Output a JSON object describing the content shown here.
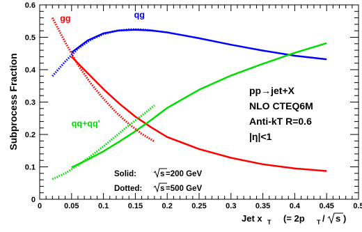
{
  "chart_data": {
    "type": "line",
    "xlabel": "Jet x",
    "xlabel_sub": "T",
    "xlabel_formula": "(= 2p",
    "xlabel_formula_sub": "T",
    "xlabel_formula_end": "/",
    "xlabel_sqrt": "s",
    "xlabel_close": ")",
    "ylabel": "Subprocess Fraction",
    "xlim": [
      0,
      0.5
    ],
    "ylim": [
      0,
      0.6
    ],
    "x_ticks": [
      0,
      0.05,
      0.1,
      0.15,
      0.2,
      0.25,
      0.3,
      0.35,
      0.4,
      0.45,
      0.5
    ],
    "x_tick_labels": [
      "0",
      "0.05",
      "0.1",
      "0.15",
      "0.2",
      "0.25",
      "0.3",
      "0.35",
      "0.4",
      "0.45",
      "0.5"
    ],
    "y_ticks": [
      0,
      0.1,
      0.2,
      0.3,
      0.4,
      0.5,
      0.6
    ],
    "y_tick_labels": [
      "0",
      "0.1",
      "0.2",
      "0.3",
      "0.4",
      "0.5",
      "0.6"
    ],
    "grid": false,
    "series": [
      {
        "name": "gg",
        "color": "#ff0000",
        "style": "solid",
        "x": [
          0.05,
          0.075,
          0.1,
          0.125,
          0.15,
          0.175,
          0.2,
          0.25,
          0.3,
          0.35,
          0.4,
          0.45
        ],
        "y": [
          0.44,
          0.39,
          0.34,
          0.295,
          0.255,
          0.222,
          0.192,
          0.155,
          0.128,
          0.108,
          0.095,
          0.087
        ]
      },
      {
        "name": "qg",
        "color": "#0000ff",
        "style": "solid",
        "x": [
          0.05,
          0.075,
          0.1,
          0.125,
          0.15,
          0.175,
          0.2,
          0.25,
          0.3,
          0.35,
          0.4,
          0.45
        ],
        "y": [
          0.453,
          0.49,
          0.512,
          0.521,
          0.523,
          0.521,
          0.515,
          0.497,
          0.477,
          0.459,
          0.443,
          0.432
        ]
      },
      {
        "name": "qq+qq'",
        "color": "#00dd00",
        "style": "solid",
        "x": [
          0.05,
          0.075,
          0.1,
          0.125,
          0.15,
          0.175,
          0.2,
          0.25,
          0.3,
          0.35,
          0.4,
          0.45
        ],
        "y": [
          0.098,
          0.122,
          0.148,
          0.178,
          0.21,
          0.245,
          0.282,
          0.338,
          0.382,
          0.418,
          0.452,
          0.482
        ]
      },
      {
        "name": "gg",
        "color": "#ff0000",
        "style": "dotted",
        "x": [
          0.02,
          0.04,
          0.06,
          0.08,
          0.1,
          0.12,
          0.14,
          0.16,
          0.18
        ],
        "y": [
          0.56,
          0.485,
          0.415,
          0.358,
          0.31,
          0.268,
          0.232,
          0.202,
          0.178
        ]
      },
      {
        "name": "qg",
        "color": "#0000ff",
        "style": "dotted",
        "x": [
          0.02,
          0.04,
          0.06,
          0.08,
          0.1,
          0.12,
          0.14,
          0.16,
          0.18
        ],
        "y": [
          0.38,
          0.425,
          0.465,
          0.492,
          0.51,
          0.52,
          0.524,
          0.524,
          0.52
        ]
      },
      {
        "name": "qq+qq'",
        "color": "#00dd00",
        "style": "dotted",
        "x": [
          0.02,
          0.04,
          0.06,
          0.08,
          0.1,
          0.12,
          0.14,
          0.16,
          0.18
        ],
        "y": [
          0.062,
          0.08,
          0.105,
          0.133,
          0.163,
          0.196,
          0.228,
          0.258,
          0.29
        ]
      }
    ],
    "series_labels": [
      {
        "text": "gg",
        "color": "#ff0000",
        "x": 0.032,
        "y": 0.55
      },
      {
        "text": "qg",
        "color": "#0000ff",
        "x": 0.148,
        "y": 0.56
      },
      {
        "text": "qq+qq'",
        "color": "#00dd00",
        "x": 0.05,
        "y": 0.225
      }
    ],
    "info_text": [
      "pp→jet+X",
      "NLO CTEQ6M",
      "Anti-kT R=0.6",
      "|η|<1"
    ],
    "line_style_notes": [
      {
        "label": "Solid:",
        "sqrt": "s",
        "value": "=200 GeV"
      },
      {
        "label": "Dotted:",
        "sqrt": "s",
        "value": "=500 GeV"
      }
    ]
  }
}
